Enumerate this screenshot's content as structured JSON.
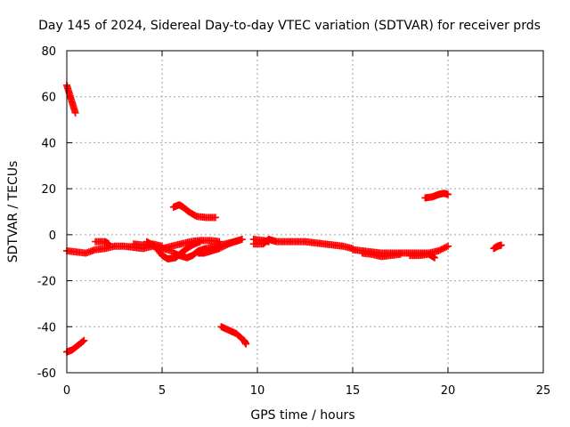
{
  "chart_data": {
    "type": "scatter",
    "title": "Day 145 of 2024, Sidereal Day-to-day VTEC variation (SDTVAR) for receiver prds",
    "xlabel": "GPS time / hours",
    "ylabel": "SDTVAR / TECUs",
    "xlim": [
      0,
      25
    ],
    "ylim": [
      -60,
      80
    ],
    "xticks": [
      0,
      5,
      10,
      15,
      20,
      25
    ],
    "yticks": [
      -60,
      -40,
      -20,
      0,
      20,
      40,
      60,
      80
    ],
    "grid": true,
    "marker": "plus",
    "color": "#ff0000",
    "series": [
      {
        "name": "seg1",
        "points": [
          [
            0.0,
            65
          ],
          [
            0.15,
            61
          ],
          [
            0.3,
            57
          ],
          [
            0.45,
            53
          ]
        ]
      },
      {
        "name": "seg2",
        "points": [
          [
            0.0,
            -51
          ],
          [
            0.3,
            -50
          ],
          [
            0.6,
            -48
          ],
          [
            0.9,
            -46
          ]
        ]
      },
      {
        "name": "seg3",
        "points": [
          [
            0.0,
            -7
          ],
          [
            0.5,
            -7.5
          ],
          [
            1.0,
            -8
          ],
          [
            1.5,
            -6.5
          ],
          [
            2.0,
            -6
          ],
          [
            2.5,
            -5
          ],
          [
            3.0,
            -5
          ],
          [
            3.5,
            -5.5
          ],
          [
            4.0,
            -6
          ],
          [
            4.5,
            -5
          ],
          [
            5.0,
            -6
          ],
          [
            5.5,
            -7
          ]
        ]
      },
      {
        "name": "seg4",
        "points": [
          [
            1.5,
            -3
          ],
          [
            2.0,
            -3
          ],
          [
            2.2,
            -4
          ]
        ]
      },
      {
        "name": "seg5",
        "points": [
          [
            3.5,
            -4
          ],
          [
            4.0,
            -4.5
          ],
          [
            4.5,
            -4
          ],
          [
            5.0,
            -5
          ]
        ]
      },
      {
        "name": "seg6",
        "points": [
          [
            4.2,
            -3
          ],
          [
            4.6,
            -5
          ],
          [
            5.0,
            -9
          ],
          [
            5.3,
            -10.5
          ],
          [
            5.7,
            -10
          ],
          [
            6.0,
            -8
          ],
          [
            6.3,
            -6
          ],
          [
            6.7,
            -4
          ],
          [
            7.0,
            -3
          ]
        ]
      },
      {
        "name": "seg7",
        "points": [
          [
            5.0,
            -6
          ],
          [
            5.5,
            -5
          ],
          [
            6.0,
            -4
          ],
          [
            6.5,
            -3
          ],
          [
            7.0,
            -2.5
          ],
          [
            7.5,
            -2.5
          ],
          [
            8.0,
            -3
          ]
        ]
      },
      {
        "name": "seg8",
        "points": [
          [
            5.6,
            -8
          ],
          [
            5.9,
            -9
          ],
          [
            6.3,
            -10
          ],
          [
            6.6,
            -9
          ],
          [
            6.9,
            -7
          ],
          [
            7.3,
            -6
          ],
          [
            7.8,
            -5
          ],
          [
            8.3,
            -4
          ],
          [
            8.8,
            -3
          ],
          [
            9.2,
            -2
          ]
        ]
      },
      {
        "name": "seg9",
        "points": [
          [
            6.9,
            -8
          ],
          [
            7.2,
            -8
          ],
          [
            7.6,
            -7
          ],
          [
            8.0,
            -6
          ],
          [
            8.5,
            -4
          ],
          [
            9.0,
            -2.5
          ]
        ]
      },
      {
        "name": "seg10",
        "points": [
          [
            5.6,
            12
          ],
          [
            5.9,
            13
          ],
          [
            6.1,
            12
          ],
          [
            6.4,
            10
          ],
          [
            6.8,
            8
          ],
          [
            7.3,
            7.5
          ],
          [
            7.8,
            7.5
          ]
        ]
      },
      {
        "name": "seg11",
        "points": [
          [
            8.1,
            -40
          ],
          [
            8.5,
            -41.5
          ],
          [
            8.9,
            -43
          ],
          [
            9.3,
            -46
          ],
          [
            9.4,
            -47.5
          ]
        ]
      },
      {
        "name": "seg12",
        "points": [
          [
            9.8,
            -4
          ],
          [
            10.3,
            -4
          ],
          [
            10.6,
            -2
          ],
          [
            11.0,
            -3
          ],
          [
            11.5,
            -3
          ],
          [
            12.0,
            -3
          ],
          [
            12.5,
            -3
          ],
          [
            13.0,
            -3.5
          ],
          [
            13.5,
            -4
          ],
          [
            14.0,
            -4.5
          ],
          [
            14.5,
            -5
          ],
          [
            15.0,
            -6
          ]
        ]
      },
      {
        "name": "seg13",
        "points": [
          [
            9.8,
            -2
          ],
          [
            10.3,
            -2.5
          ],
          [
            10.6,
            -3
          ]
        ]
      },
      {
        "name": "seg14",
        "points": [
          [
            15.0,
            -6.5
          ],
          [
            15.5,
            -7
          ],
          [
            16.0,
            -7.5
          ],
          [
            16.5,
            -8
          ],
          [
            17.0,
            -8
          ],
          [
            17.5,
            -8
          ],
          [
            18.0,
            -8
          ],
          [
            18.5,
            -8
          ],
          [
            19.0,
            -8
          ],
          [
            19.5,
            -7
          ],
          [
            20.0,
            -5
          ]
        ]
      },
      {
        "name": "seg15",
        "points": [
          [
            15.5,
            -8
          ],
          [
            16.0,
            -8.5
          ],
          [
            16.5,
            -9.5
          ],
          [
            17.0,
            -9
          ],
          [
            17.5,
            -8.5
          ]
        ]
      },
      {
        "name": "seg16",
        "points": [
          [
            18.0,
            -9
          ],
          [
            18.5,
            -9
          ],
          [
            19.0,
            -8.5
          ],
          [
            19.3,
            -10
          ]
        ]
      },
      {
        "name": "seg17",
        "points": [
          [
            18.8,
            16
          ],
          [
            19.2,
            16.5
          ],
          [
            19.5,
            17.5
          ],
          [
            19.8,
            18
          ],
          [
            20.0,
            17.5
          ]
        ]
      },
      {
        "name": "seg18",
        "points": [
          [
            22.4,
            -6
          ],
          [
            22.6,
            -5
          ],
          [
            22.8,
            -4.5
          ]
        ]
      }
    ]
  }
}
